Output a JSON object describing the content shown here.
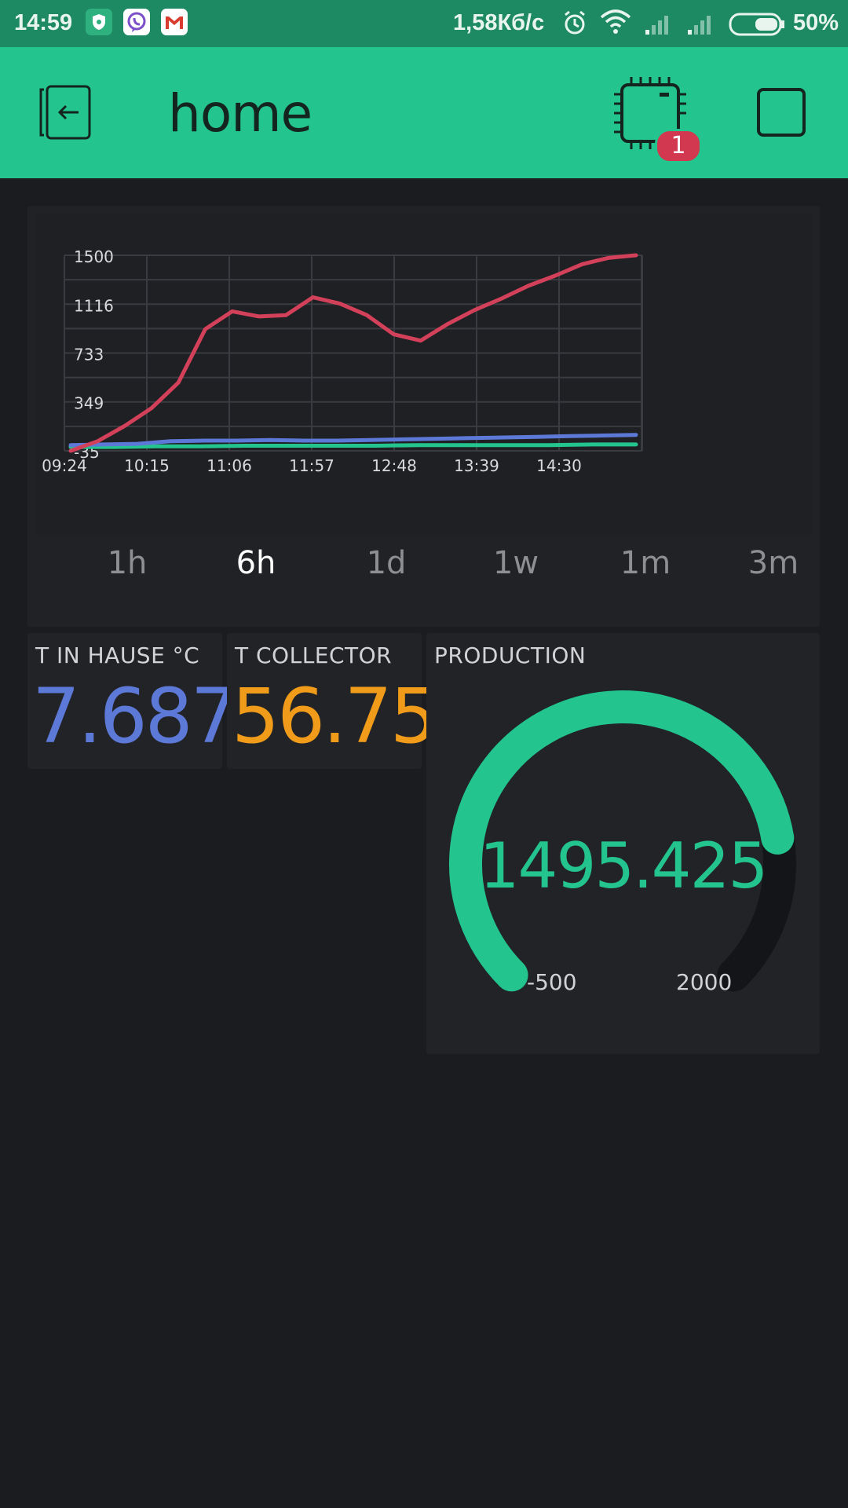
{
  "status_bar": {
    "time": "14:59",
    "speed": "1,58Кб/с",
    "battery": "50%",
    "icons": [
      "shield-app-icon",
      "viber-icon",
      "gmail-icon",
      "alarm-icon",
      "wifi-icon",
      "signal-icon",
      "signal-icon",
      "battery-icon"
    ]
  },
  "header": {
    "title": "home",
    "badge_count": "1",
    "icons": [
      "back-icon",
      "chip-icon",
      "square-icon"
    ]
  },
  "chart": {
    "ranges": [
      "1h",
      "6h",
      "1d",
      "1w",
      "1m",
      "3m"
    ],
    "active_range": "6h"
  },
  "chart_data": {
    "type": "line",
    "x_tick_labels": [
      "09:24",
      "10:15",
      "11:06",
      "11:57",
      "12:48",
      "13:39",
      "14:30"
    ],
    "y_tick_labels": [
      "1500",
      "1116",
      "733",
      "349",
      "-35"
    ],
    "ylim": [
      -35,
      1500
    ],
    "grid": true,
    "series": [
      {
        "color": "#d2405a",
        "values": [
          -35,
          40,
          160,
          300,
          500,
          920,
          1060,
          1020,
          1030,
          1170,
          1120,
          1030,
          880,
          830,
          960,
          1070,
          1160,
          1260,
          1340,
          1430,
          1480,
          1500
        ]
      },
      {
        "color": "#5d79d8",
        "values": [
          10,
          15,
          20,
          40,
          45,
          45,
          50,
          45,
          45,
          50,
          55,
          60,
          65,
          70,
          75,
          80,
          85,
          90
        ]
      },
      {
        "color": "#23c48e",
        "values": [
          -5,
          -5,
          0,
          0,
          5,
          5,
          5,
          5,
          10,
          10,
          10,
          10,
          15,
          15
        ]
      }
    ]
  },
  "widgets": {
    "house": {
      "label": "T IN HAUSE °C",
      "value": "7.687",
      "color": "#5d79d8"
    },
    "collector": {
      "label": "T COLLECTOR",
      "value": "56.75",
      "color": "#f09c1a"
    },
    "production": {
      "label": "PRODUCTION",
      "value": "1495.425",
      "min": "-500",
      "max": "2000",
      "value_num": 1495.425,
      "color": "#23c48e"
    }
  }
}
